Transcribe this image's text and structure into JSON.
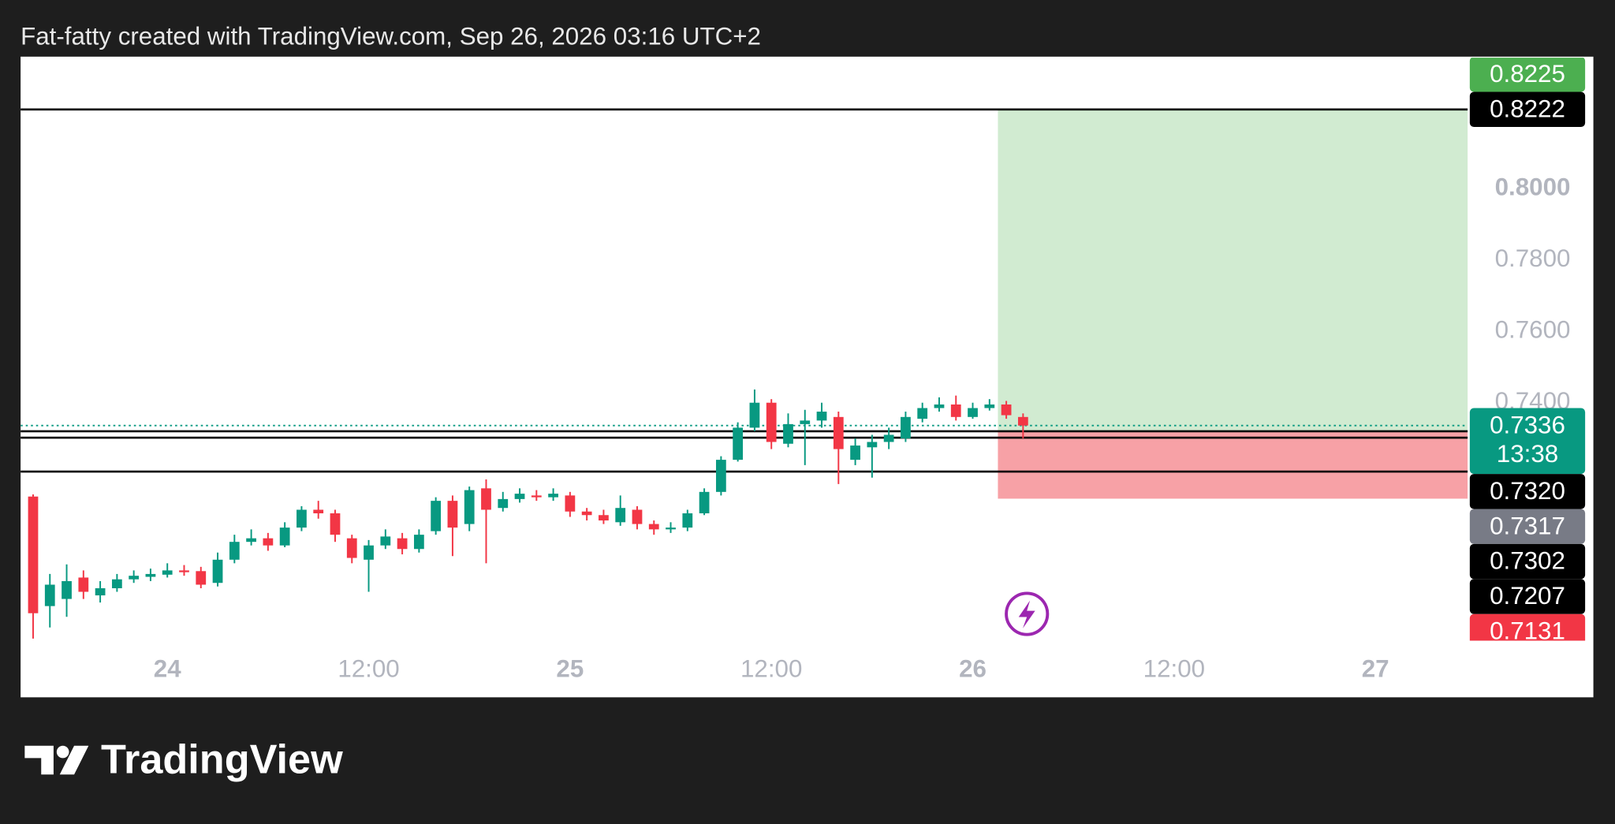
{
  "header": "Fat-fatty created with TradingView.com, Sep 26, 2026 03:16 UTC+2",
  "brand": "TradingView",
  "chart_data": {
    "type": "candlestick",
    "up_color": "#089981",
    "down_color": "#f23645",
    "categories": [
      null,
      null,
      null,
      null,
      null,
      null,
      null,
      null,
      "24",
      null,
      null,
      null,
      null,
      null,
      null,
      null,
      null,
      null,
      null,
      null,
      "12:00",
      null,
      null,
      null,
      null,
      null,
      null,
      null,
      null,
      null,
      null,
      null,
      "25",
      null,
      null,
      null,
      null,
      null,
      null,
      null,
      null,
      null,
      null,
      null,
      "12:00",
      null,
      null,
      null,
      null,
      null,
      null,
      null,
      null,
      null,
      null,
      null,
      "26",
      null,
      null,
      null,
      null,
      null,
      null,
      null,
      null,
      null,
      null,
      null,
      "12:00",
      null,
      null,
      null,
      null,
      null,
      null,
      null,
      null,
      null,
      null,
      null,
      "27",
      null,
      null,
      null,
      null,
      null
    ],
    "open": [
      0.7137,
      0.683,
      0.685,
      0.691,
      0.686,
      0.688,
      0.6905,
      0.6912,
      0.6918,
      0.693,
      0.6928,
      0.6895,
      0.696,
      0.701,
      0.702,
      0.7,
      0.705,
      0.71,
      0.709,
      0.702,
      0.696,
      0.7,
      0.702,
      0.699,
      0.704,
      0.7125,
      0.706,
      0.716,
      0.7105,
      0.713,
      0.714,
      0.7135,
      0.714,
      0.7095,
      0.7085,
      0.7065,
      0.71,
      0.706,
      0.7045,
      0.705,
      0.709,
      0.715,
      0.724,
      0.733,
      0.74,
      0.7285,
      0.734,
      0.735,
      0.736,
      0.724,
      0.7275,
      0.729,
      0.73,
      0.7355,
      0.7385,
      0.7395,
      0.736,
      0.7385,
      0.7395,
      0.736,
      null,
      null,
      null,
      null,
      null,
      null,
      null,
      null,
      null,
      null,
      null,
      null,
      null,
      null,
      null,
      null,
      null,
      null,
      null,
      null,
      null,
      null,
      null,
      null,
      null,
      null
    ],
    "high": [
      0.7143,
      0.692,
      0.6947,
      0.693,
      0.69,
      0.692,
      0.693,
      0.6935,
      0.695,
      0.6945,
      0.694,
      0.698,
      0.703,
      0.7045,
      0.7035,
      0.7065,
      0.711,
      0.7125,
      0.71,
      0.703,
      0.7015,
      0.7045,
      0.7035,
      0.7045,
      0.7135,
      0.714,
      0.7165,
      0.7185,
      0.715,
      0.716,
      0.7155,
      0.716,
      0.715,
      0.7105,
      0.71,
      0.714,
      0.711,
      0.707,
      0.7065,
      0.71,
      0.716,
      0.725,
      0.7345,
      0.7437,
      0.741,
      0.737,
      0.738,
      0.74,
      0.7375,
      0.73,
      0.731,
      0.733,
      0.7375,
      0.74,
      0.7415,
      0.742,
      0.74,
      0.741,
      0.7405,
      0.737,
      null,
      null,
      null,
      null,
      null,
      null,
      null,
      null,
      null,
      null,
      null,
      null,
      null,
      null,
      null,
      null,
      null,
      null,
      null,
      null,
      null,
      null,
      null,
      null,
      null,
      null
    ],
    "low": [
      0.6739,
      0.677,
      0.68,
      0.685,
      0.684,
      0.687,
      0.6895,
      0.69,
      0.691,
      0.6915,
      0.688,
      0.6885,
      0.695,
      0.7,
      0.6985,
      0.6995,
      0.704,
      0.7075,
      0.701,
      0.695,
      0.687,
      0.699,
      0.6975,
      0.698,
      0.703,
      0.697,
      0.704,
      0.695,
      0.7095,
      0.712,
      0.7125,
      0.7125,
      0.708,
      0.707,
      0.706,
      0.7055,
      0.7045,
      0.703,
      0.7035,
      0.704,
      0.7085,
      0.714,
      0.7235,
      0.732,
      0.727,
      0.7275,
      0.7225,
      0.733,
      0.7172,
      0.7225,
      0.719,
      0.727,
      0.729,
      0.7345,
      0.7375,
      0.735,
      0.7355,
      0.7378,
      0.7355,
      0.73,
      null,
      null,
      null,
      null,
      null,
      null,
      null,
      null,
      null,
      null,
      null,
      null,
      null,
      null,
      null,
      null,
      null,
      null,
      null,
      null,
      null,
      null,
      null,
      null,
      null,
      null
    ],
    "close": [
      0.681,
      0.689,
      0.69,
      0.687,
      0.688,
      0.6905,
      0.6915,
      0.692,
      0.693,
      0.6925,
      0.689,
      0.696,
      0.701,
      0.702,
      0.7,
      0.705,
      0.71,
      0.709,
      0.703,
      0.6965,
      0.7,
      0.7025,
      0.699,
      0.703,
      0.7125,
      0.705,
      0.7155,
      0.71,
      0.713,
      0.7145,
      0.7135,
      0.7145,
      0.7095,
      0.7085,
      0.707,
      0.7105,
      0.706,
      0.7045,
      0.705,
      0.709,
      0.715,
      0.724,
      0.733,
      0.74,
      0.729,
      0.734,
      0.735,
      0.7375,
      0.727,
      0.728,
      0.729,
      0.731,
      0.736,
      0.7385,
      0.7395,
      0.736,
      0.7385,
      0.7395,
      0.7365,
      0.7336,
      null,
      null,
      null,
      null,
      null,
      null,
      null,
      null,
      null,
      null,
      null,
      null,
      null,
      null,
      null,
      null,
      null,
      null,
      null,
      null,
      null,
      null,
      null,
      null,
      null,
      null
    ],
    "ylim": [
      0.671,
      0.8367
    ],
    "yticks": [
      {
        "value": 0.8,
        "label": "0.8000",
        "bold": true
      },
      {
        "value": 0.78,
        "label": "0.7800"
      },
      {
        "value": 0.76,
        "label": "0.7600"
      },
      {
        "value": 0.74,
        "label": "0.7400"
      }
    ],
    "position": {
      "target": 0.8222,
      "entry": 0.732,
      "stop": 0.7131,
      "profit_color": "#d1ebd1",
      "loss_color": "#f7a1a6"
    },
    "price_labels": [
      {
        "price": 0.8225,
        "color": "#4caf50"
      },
      {
        "price": 0.8222,
        "color": "#000000",
        "line": "solid"
      },
      {
        "price": 0.7336,
        "countdown": "13:38",
        "color": "#089981",
        "line": "dotted"
      },
      {
        "price": {
          "value": 0.732,
          "label": "0.7320"
        },
        "color": "#000000",
        "line": "solid"
      },
      {
        "price": 0.7317,
        "color": "#787b86"
      },
      {
        "price": 0.7302,
        "color": "#000000",
        "line": "solid"
      },
      {
        "price": 0.7207,
        "color": "#000000",
        "line": "solid"
      },
      {
        "price": 0.7131,
        "color": "#f23645"
      }
    ]
  }
}
